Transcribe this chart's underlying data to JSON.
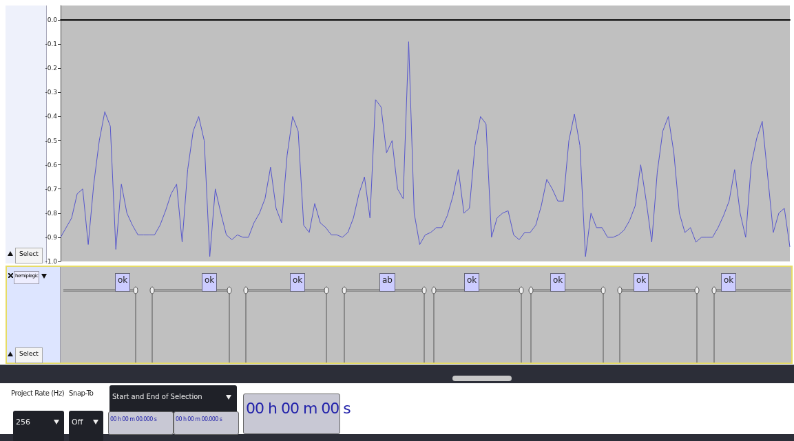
{
  "chart_data": {
    "type": "line",
    "categories": [
      null,
      null,
      null,
      null,
      null,
      null,
      null,
      null,
      null,
      null,
      null,
      null,
      null,
      null,
      null,
      null,
      null,
      null,
      null,
      null,
      null,
      null,
      null,
      null,
      null,
      null,
      null,
      null,
      null,
      null,
      null,
      null,
      null,
      null,
      null,
      null,
      null,
      null,
      null,
      null,
      null,
      null,
      null,
      null,
      null,
      null,
      null,
      null,
      null,
      null,
      null,
      null,
      null,
      null,
      null,
      null,
      null,
      null,
      null,
      null,
      null,
      null,
      null,
      null,
      null,
      null,
      null,
      null,
      null,
      null,
      null,
      null,
      null,
      null,
      null,
      null,
      null,
      null,
      null,
      null,
      null,
      null,
      null,
      null,
      null,
      null,
      null,
      null,
      null,
      null,
      null,
      null,
      null,
      null,
      null,
      null,
      null,
      null,
      null,
      null,
      null,
      null,
      null,
      null,
      null,
      null,
      null,
      null,
      null,
      null,
      null,
      null,
      null,
      null,
      null,
      null,
      null,
      null,
      null,
      null,
      null,
      null,
      null,
      null,
      null,
      null,
      null,
      null,
      null,
      null,
      null,
      null,
      null
    ],
    "values": [
      -0.9,
      -0.86,
      -0.82,
      -0.72,
      -0.7,
      -0.93,
      -0.68,
      -0.5,
      -0.38,
      -0.44,
      -0.95,
      -0.68,
      -0.8,
      -0.85,
      -0.89,
      -0.89,
      -0.89,
      -0.89,
      -0.85,
      -0.79,
      -0.72,
      -0.68,
      -0.92,
      -0.62,
      -0.46,
      -0.4,
      -0.5,
      -0.98,
      -0.7,
      -0.8,
      -0.89,
      -0.91,
      -0.89,
      -0.9,
      -0.9,
      -0.84,
      -0.8,
      -0.74,
      -0.61,
      -0.78,
      -0.84,
      -0.56,
      -0.4,
      -0.46,
      -0.85,
      -0.88,
      -0.76,
      -0.84,
      -0.86,
      -0.89,
      -0.89,
      -0.9,
      -0.88,
      -0.82,
      -0.72,
      -0.65,
      -0.82,
      -0.33,
      -0.36,
      -0.55,
      -0.5,
      -0.7,
      -0.74,
      -0.09,
      -0.8,
      -0.93,
      -0.89,
      -0.88,
      -0.86,
      -0.86,
      -0.81,
      -0.73,
      -0.62,
      -0.8,
      -0.78,
      -0.52,
      -0.4,
      -0.43,
      -0.9,
      -0.82,
      -0.8,
      -0.79,
      -0.89,
      -0.91,
      -0.88,
      -0.88,
      -0.85,
      -0.77,
      -0.66,
      -0.7,
      -0.75,
      -0.75,
      -0.5,
      -0.39,
      -0.52,
      -0.98,
      -0.8,
      -0.86,
      -0.86,
      -0.9,
      -0.9,
      -0.89,
      -0.87,
      -0.83,
      -0.77,
      -0.6,
      -0.75,
      -0.92,
      -0.63,
      -0.46,
      -0.4,
      -0.55,
      -0.8,
      -0.88,
      -0.86,
      -0.92,
      -0.9,
      -0.9,
      -0.9,
      -0.86,
      -0.81,
      -0.75,
      -0.62,
      -0.8,
      -0.9,
      -0.6,
      -0.49,
      -0.42,
      -0.65,
      -0.88,
      -0.8,
      -0.78,
      -0.94
    ],
    "color": "#5555cc",
    "ylim": [
      -1.0,
      0.06
    ],
    "yticks": [
      {
        "value": 0,
        "label": "0.0"
      },
      -0.1,
      -0.2,
      -0.3,
      -0.4,
      -0.5,
      -0.6,
      -0.7,
      -0.8,
      -0.9,
      {
        "value": -1,
        "label": "-1.0"
      }
    ],
    "tick_labels": "y",
    "grid": false,
    "ref_lines": [
      {
        "axis": "y",
        "value": 0,
        "color": "#000000"
      }
    ],
    "annotations": [
      "ok",
      "ok",
      "ok",
      "ab",
      "ok",
      "ok",
      "ok",
      "ok",
      "hemiplegic",
      "Select",
      "Select",
      "Project Rate (Hz)",
      "Snap-To",
      "256",
      "Off",
      "Start and End of Selection",
      "00 h 00 m 00.000 s",
      "00 h 00 m 00.000 s",
      "00 h 00 m 00 s"
    ]
  }
}
